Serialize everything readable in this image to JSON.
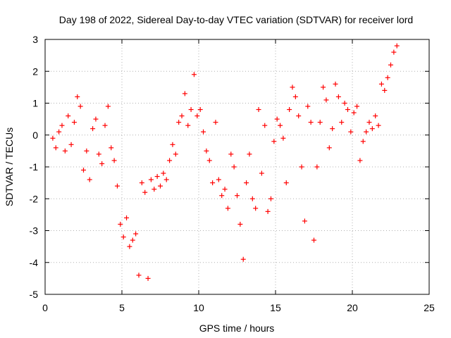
{
  "chart_data": {
    "type": "scatter",
    "title": "Day 198 of 2022, Sidereal Day-to-day VTEC variation (SDTVAR) for receiver lord",
    "xlabel": "GPS time / hours",
    "ylabel": "SDTVAR / TECUs",
    "xlim": [
      0,
      25
    ],
    "ylim": [
      -5,
      3
    ],
    "xticks": [
      0,
      5,
      10,
      15,
      20,
      25
    ],
    "yticks": [
      -5,
      -4,
      -3,
      -2,
      -1,
      0,
      1,
      2,
      3
    ],
    "xtick_labels": [
      "0",
      "5",
      "10",
      "15",
      "20",
      "25"
    ],
    "ytick_labels": [
      "-5",
      "-4",
      "-3",
      "-2",
      "-1",
      "0",
      "1",
      "2",
      "3"
    ],
    "grid": true,
    "marker": "+",
    "color": "#ff0000",
    "series": [
      {
        "name": "SDTVAR",
        "x": [
          0.5,
          0.7,
          0.9,
          1.1,
          1.3,
          1.5,
          1.7,
          1.9,
          2.1,
          2.3,
          2.5,
          2.7,
          2.9,
          3.1,
          3.3,
          3.5,
          3.7,
          3.9,
          4.1,
          4.3,
          4.5,
          4.7,
          4.9,
          5.1,
          5.3,
          5.5,
          5.7,
          5.9,
          6.1,
          6.3,
          6.5,
          6.7,
          6.9,
          7.1,
          7.3,
          7.5,
          7.7,
          7.9,
          8.1,
          8.3,
          8.5,
          8.7,
          8.9,
          9.1,
          9.3,
          9.5,
          9.7,
          9.9,
          10.1,
          10.3,
          10.5,
          10.7,
          10.9,
          11.1,
          11.3,
          11.5,
          11.7,
          11.9,
          12.1,
          12.3,
          12.5,
          12.7,
          12.9,
          13.1,
          13.3,
          13.5,
          13.7,
          13.9,
          14.1,
          14.3,
          14.5,
          14.7,
          14.9,
          15.1,
          15.3,
          15.5,
          15.7,
          15.9,
          16.1,
          16.3,
          16.5,
          16.7,
          16.9,
          17.1,
          17.3,
          17.5,
          17.7,
          17.9,
          18.1,
          18.3,
          18.5,
          18.7,
          18.9,
          19.1,
          19.3,
          19.5,
          19.7,
          19.9,
          20.1,
          20.3,
          20.5,
          20.7,
          20.9,
          21.1,
          21.3,
          21.5,
          21.7,
          21.9,
          22.1,
          22.3,
          22.5,
          22.7,
          22.9
        ],
        "y": [
          -0.1,
          -0.4,
          0.1,
          0.3,
          -0.5,
          0.6,
          -0.3,
          0.4,
          1.2,
          0.9,
          -1.1,
          -0.5,
          -1.4,
          0.2,
          0.5,
          -0.6,
          -0.9,
          0.3,
          0.9,
          -0.4,
          -0.8,
          -1.6,
          -2.8,
          -3.2,
          -2.6,
          -3.5,
          -3.3,
          -3.1,
          -4.4,
          -1.5,
          -1.8,
          -4.5,
          -1.4,
          -1.7,
          -1.3,
          -1.6,
          -1.2,
          -1.4,
          -0.8,
          -0.3,
          -0.6,
          0.4,
          0.6,
          1.3,
          0.3,
          0.8,
          1.9,
          0.6,
          0.8,
          0.1,
          -0.5,
          -0.8,
          -1.5,
          0.4,
          -1.4,
          -1.9,
          -1.7,
          -2.3,
          -0.6,
          -1.0,
          -1.9,
          -2.8,
          -3.9,
          -1.5,
          -0.6,
          -2.0,
          -2.3,
          0.8,
          -1.2,
          0.3,
          -2.4,
          -2.0,
          -0.2,
          0.5,
          0.3,
          -0.1,
          -1.5,
          0.8,
          1.5,
          1.2,
          0.6,
          -1.0,
          -2.7,
          0.9,
          0.4,
          -3.3,
          -1.0,
          0.4,
          1.5,
          1.1,
          -0.4,
          0.2,
          1.6,
          1.2,
          0.4,
          1.0,
          0.8,
          0.1,
          0.7,
          0.9,
          -0.8,
          -0.2,
          0.1,
          0.4,
          0.2,
          0.6,
          0.3,
          1.6,
          1.4,
          1.8,
          2.2,
          2.6,
          2.8
        ]
      }
    ]
  }
}
